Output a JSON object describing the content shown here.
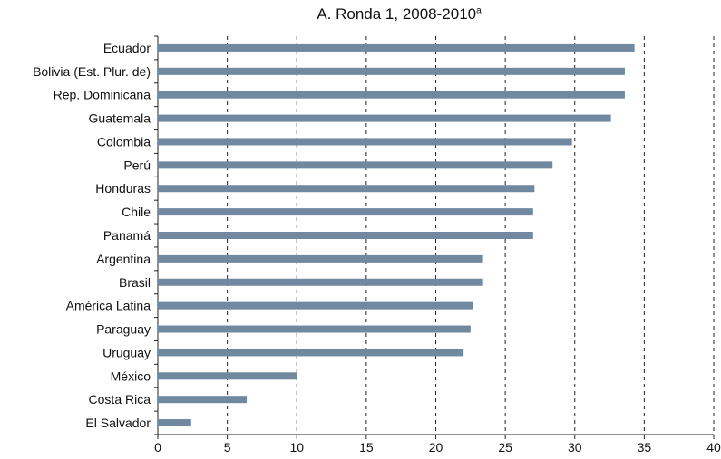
{
  "chart_data": {
    "type": "bar",
    "orientation": "horizontal",
    "title": "A. Ronda 1, 2008-2010",
    "title_superscript": "a",
    "categories": [
      "Ecuador",
      "Bolivia (Est. Plur. de)",
      "Rep. Dominicana",
      "Guatemala",
      "Colombia",
      "Perú",
      "Honduras",
      "Chile",
      "Panamá",
      "Argentina",
      "Brasil",
      "América Latina",
      "Paraguay",
      "Uruguay",
      "México",
      "Costa Rica",
      "El Salvador"
    ],
    "values": [
      34.3,
      33.6,
      33.6,
      32.6,
      29.8,
      28.4,
      27.1,
      27.0,
      27.0,
      23.4,
      23.4,
      22.7,
      22.5,
      22.0,
      10.0,
      6.4,
      2.4
    ],
    "xlim": [
      0,
      40
    ],
    "xticks": [
      "0",
      "5",
      "10",
      "15",
      "20",
      "25",
      "30",
      "35",
      "40"
    ],
    "xlabel": "",
    "ylabel": "",
    "grid": "vertical dashed",
    "bar_color": "#7088a0"
  }
}
